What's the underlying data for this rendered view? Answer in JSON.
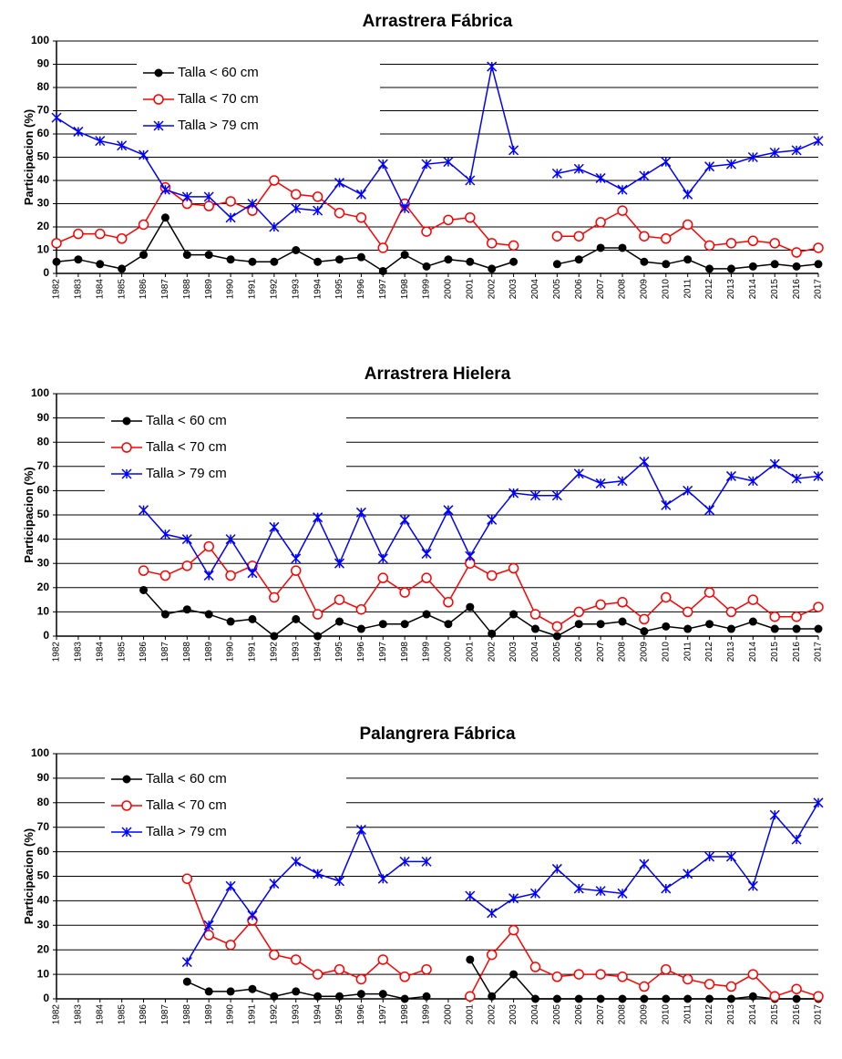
{
  "chart_data": [
    {
      "type": "line",
      "title": "Arrastrera Fábrica",
      "y_label": "Participacion (%)",
      "categories": [
        "1982",
        "1983",
        "1984",
        "1985",
        "1986",
        "1987",
        "1988",
        "1989",
        "1990",
        "1991",
        "1992",
        "1993",
        "1994",
        "1995",
        "1996",
        "1997",
        "1998",
        "1999",
        "2000",
        "2001",
        "2002",
        "2003",
        "2004",
        "2005",
        "2006",
        "2007",
        "2008",
        "2009",
        "2010",
        "2011",
        "2012",
        "2013",
        "2014",
        "2015",
        "2016",
        "2017"
      ],
      "ylim": [
        0,
        100
      ],
      "yticks": [
        0,
        10,
        20,
        30,
        40,
        50,
        60,
        70,
        80,
        90,
        100
      ],
      "grid": true,
      "series": [
        {
          "name": "Talla < 60 cm",
          "color": "#000000",
          "marker": "filled-circle",
          "values": [
            5,
            6,
            4,
            2,
            8,
            24,
            8,
            8,
            6,
            5,
            5,
            10,
            5,
            6,
            7,
            1,
            8,
            3,
            6,
            5,
            2,
            5,
            null,
            4,
            6,
            11,
            11,
            5,
            4,
            6,
            2,
            2,
            3,
            4,
            3,
            4
          ]
        },
        {
          "name": "Talla < 70 cm",
          "color": "#ff0000",
          "marker": "open-circle",
          "values": [
            13,
            17,
            17,
            15,
            21,
            37,
            30,
            29,
            31,
            27,
            40,
            34,
            33,
            26,
            24,
            11,
            30,
            18,
            23,
            24,
            13,
            12,
            null,
            16,
            16,
            22,
            27,
            16,
            15,
            21,
            12,
            13,
            14,
            13,
            9,
            11
          ]
        },
        {
          "name": "Talla > 79 cm",
          "color": "#0000ff",
          "marker": "asterisk",
          "values": [
            67,
            61,
            57,
            55,
            51,
            36,
            33,
            33,
            24,
            30,
            20,
            28,
            27,
            39,
            34,
            47,
            28,
            47,
            48,
            40,
            89,
            53,
            null,
            43,
            45,
            41,
            36,
            42,
            48,
            34,
            46,
            47,
            50,
            52,
            53,
            57
          ]
        }
      ]
    },
    {
      "type": "line",
      "title": "Arrastrera Hielera",
      "y_label": "Participacion (%)",
      "categories": [
        "1982",
        "1983",
        "1984",
        "1985",
        "1986",
        "1987",
        "1988",
        "1989",
        "1990",
        "1991",
        "1992",
        "1993",
        "1994",
        "1995",
        "1996",
        "1997",
        "1998",
        "1999",
        "2000",
        "2001",
        "2002",
        "2003",
        "2004",
        "2005",
        "2006",
        "2007",
        "2008",
        "2009",
        "2010",
        "2011",
        "2012",
        "2013",
        "2014",
        "2015",
        "2016",
        "2017"
      ],
      "ylim": [
        0,
        100
      ],
      "yticks": [
        0,
        10,
        20,
        30,
        40,
        50,
        60,
        70,
        80,
        90,
        100
      ],
      "grid": true,
      "series": [
        {
          "name": "Talla < 60 cm",
          "color": "#000000",
          "marker": "filled-circle",
          "values": [
            null,
            null,
            null,
            null,
            19,
            9,
            11,
            9,
            6,
            7,
            0,
            7,
            0,
            6,
            3,
            5,
            5,
            9,
            5,
            12,
            1,
            9,
            3,
            0,
            5,
            5,
            6,
            2,
            4,
            3,
            5,
            3,
            6,
            3,
            3,
            3
          ]
        },
        {
          "name": "Talla < 70 cm",
          "color": "#ff0000",
          "marker": "open-circle",
          "values": [
            null,
            null,
            null,
            null,
            27,
            25,
            29,
            37,
            25,
            29,
            16,
            27,
            9,
            15,
            11,
            24,
            18,
            24,
            14,
            30,
            25,
            28,
            9,
            4,
            10,
            13,
            14,
            7,
            16,
            10,
            18,
            10,
            15,
            8,
            8,
            12
          ]
        },
        {
          "name": "Talla > 79 cm",
          "color": "#0000ff",
          "marker": "asterisk",
          "values": [
            null,
            null,
            null,
            null,
            52,
            42,
            40,
            25,
            40,
            26,
            45,
            32,
            49,
            30,
            51,
            32,
            48,
            34,
            52,
            33,
            48,
            59,
            58,
            58,
            67,
            63,
            64,
            72,
            54,
            60,
            52,
            66,
            64,
            71,
            65,
            66
          ]
        }
      ]
    },
    {
      "type": "line",
      "title": "Palangrera Fábrica",
      "y_label": "Participacion (%)",
      "categories": [
        "1982",
        "1983",
        "1984",
        "1985",
        "1986",
        "1987",
        "1988",
        "1989",
        "1990",
        "1991",
        "1992",
        "1993",
        "1994",
        "1995",
        "1996",
        "1997",
        "1998",
        "1999",
        "2000",
        "2001",
        "2002",
        "2003",
        "2004",
        "2005",
        "2006",
        "2007",
        "2008",
        "2009",
        "2010",
        "2011",
        "2012",
        "2013",
        "2014",
        "2015",
        "2016",
        "2017"
      ],
      "ylim": [
        0,
        100
      ],
      "yticks": [
        0,
        10,
        20,
        30,
        40,
        50,
        60,
        70,
        80,
        90,
        100
      ],
      "grid": true,
      "series": [
        {
          "name": "Talla < 60 cm",
          "color": "#000000",
          "marker": "filled-circle",
          "values": [
            null,
            null,
            null,
            null,
            null,
            null,
            7,
            3,
            3,
            4,
            1,
            3,
            1,
            1,
            2,
            2,
            0,
            1,
            null,
            16,
            1,
            10,
            0,
            0,
            0,
            0,
            0,
            0,
            0,
            0,
            0,
            0,
            1,
            0,
            0,
            0
          ]
        },
        {
          "name": "Talla < 70 cm",
          "color": "#ff0000",
          "marker": "open-circle",
          "values": [
            null,
            null,
            null,
            null,
            null,
            null,
            49,
            26,
            22,
            32,
            18,
            16,
            10,
            12,
            8,
            16,
            9,
            12,
            null,
            1,
            18,
            28,
            13,
            9,
            10,
            10,
            9,
            5,
            12,
            8,
            6,
            5,
            10,
            1,
            4,
            1
          ]
        },
        {
          "name": "Talla > 79 cm",
          "color": "#0000ff",
          "marker": "asterisk",
          "values": [
            null,
            null,
            null,
            null,
            null,
            null,
            15,
            30,
            46,
            34,
            47,
            56,
            51,
            48,
            69,
            49,
            56,
            56,
            null,
            42,
            35,
            41,
            43,
            53,
            45,
            44,
            43,
            55,
            45,
            51,
            58,
            58,
            46,
            75,
            65,
            80
          ]
        }
      ]
    }
  ]
}
